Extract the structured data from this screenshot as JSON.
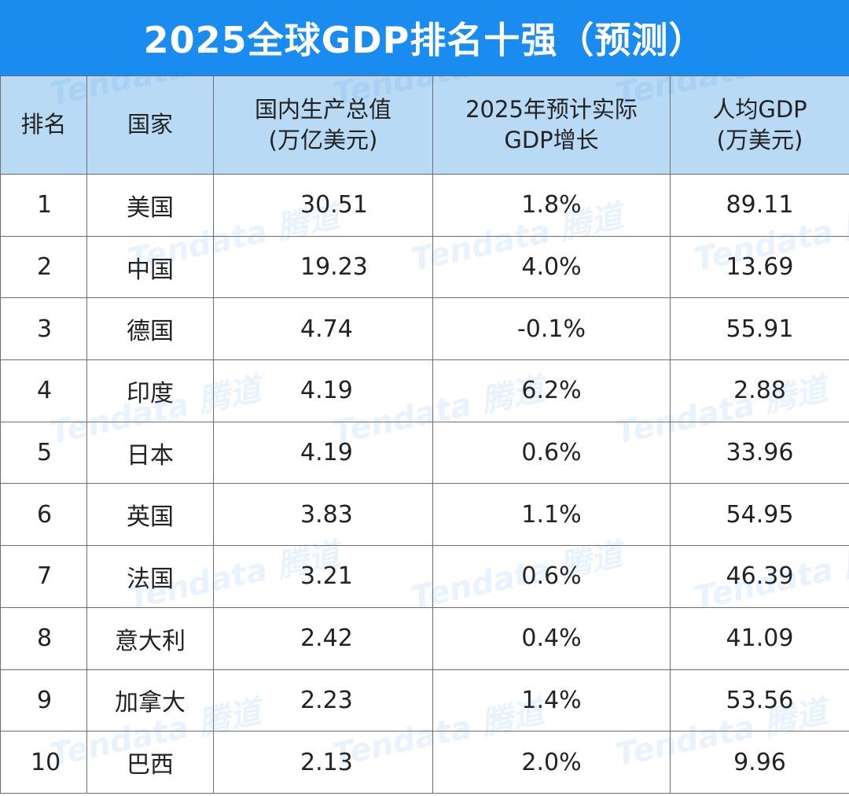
{
  "title": "2025全球GDP排名十强（预测）",
  "watermark": "Tendata 腾道",
  "header": {
    "rank": "排名",
    "country": "国家",
    "gdp_line1": "国内生产总值",
    "gdp_line2": "(万亿美元)",
    "growth_line1": "2025年预计实际",
    "growth_line2": "GDP增长",
    "per_capita_line1": "人均GDP",
    "per_capita_line2": "(万美元)"
  },
  "rows": [
    {
      "rank": "1",
      "country": "美国",
      "gdp": "30.51",
      "growth": "1.8%",
      "per_capita": "89.11"
    },
    {
      "rank": "2",
      "country": "中国",
      "gdp": "19.23",
      "growth": "4.0%",
      "per_capita": "13.69"
    },
    {
      "rank": "3",
      "country": "德国",
      "gdp": "4.74",
      "growth": "-0.1%",
      "per_capita": "55.91"
    },
    {
      "rank": "4",
      "country": "印度",
      "gdp": "4.19",
      "growth": "6.2%",
      "per_capita": "2.88"
    },
    {
      "rank": "5",
      "country": "日本",
      "gdp": "4.19",
      "growth": "0.6%",
      "per_capita": "33.96"
    },
    {
      "rank": "6",
      "country": "英国",
      "gdp": "3.83",
      "growth": "1.1%",
      "per_capita": "54.95"
    },
    {
      "rank": "7",
      "country": "法国",
      "gdp": "3.21",
      "growth": "0.6%",
      "per_capita": "46.39"
    },
    {
      "rank": "8",
      "country": "意大利",
      "gdp": "2.42",
      "growth": "0.4%",
      "per_capita": "41.09"
    },
    {
      "rank": "9",
      "country": "加拿大",
      "gdp": "2.23",
      "growth": "1.4%",
      "per_capita": "53.56"
    },
    {
      "rank": "10",
      "country": "巴西",
      "gdp": "2.13",
      "growth": "2.0%",
      "per_capita": "9.96"
    }
  ],
  "colors": {
    "title_bg": "#1a8cf0",
    "header_bg": "#b9daf5",
    "border": "#6e6e6e"
  }
}
